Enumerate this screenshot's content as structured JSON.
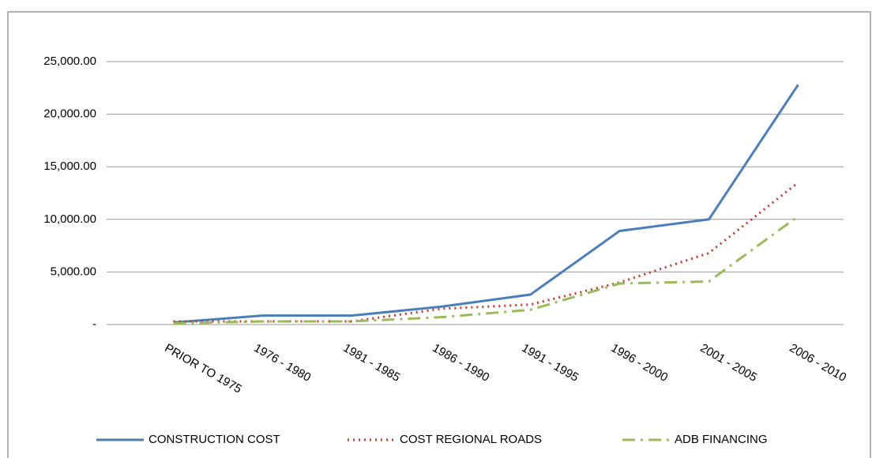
{
  "chart_data": {
    "type": "line",
    "categories": [
      "PRIOR TO 1975",
      "1976 - 1980",
      "1981 - 1985",
      "1986 - 1990",
      "1991 - 1995",
      "1996 - 2000",
      "2001 - 2005",
      "2006 - 2010"
    ],
    "series": [
      {
        "name": "CONSTRUCTION COST",
        "color": "#4a7ebb",
        "values": [
          200,
          850,
          850,
          1700,
          2850,
          8900,
          10000,
          22800
        ]
      },
      {
        "name": "COST REGIONAL ROADS",
        "color": "#c0392b",
        "values": [
          300,
          300,
          300,
          1500,
          1900,
          4000,
          6800,
          13500
        ]
      },
      {
        "name": "ADB FINANCING",
        "color": "#9bbb59",
        "values": [
          100,
          300,
          300,
          700,
          1400,
          3900,
          4100,
          10300
        ]
      }
    ],
    "ylim": [
      0,
      25000
    ],
    "yticks": [
      {
        "value": 0,
        "label": "-"
      },
      {
        "value": 5000,
        "label": "5,000.00"
      },
      {
        "value": 10000,
        "label": "10,000.00"
      },
      {
        "value": 15000,
        "label": "15,000.00"
      },
      {
        "value": 20000,
        "label": "20,000.00"
      },
      {
        "value": 25000,
        "label": "25,000.00"
      }
    ],
    "grid": true,
    "legend": "bottom"
  }
}
